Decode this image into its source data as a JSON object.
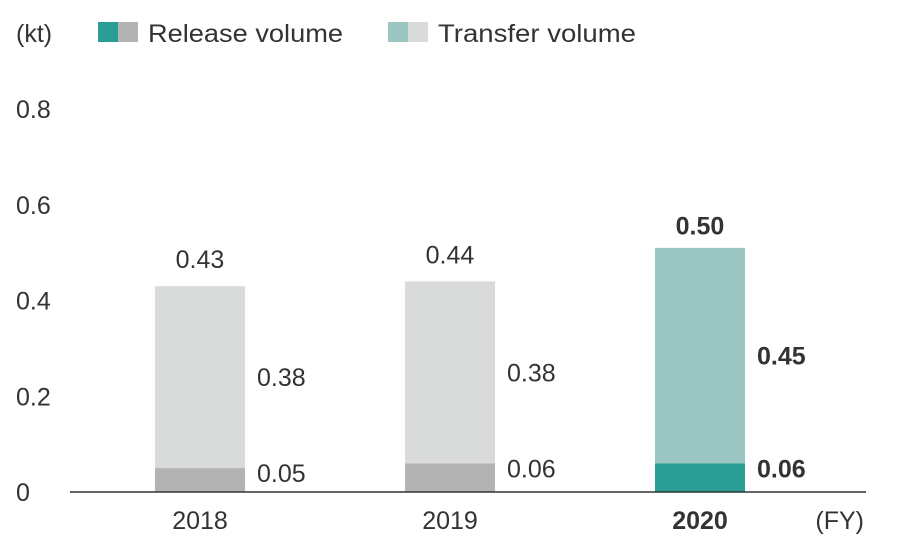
{
  "chart_data": {
    "type": "bar",
    "stacked": true,
    "unit_label": "(kt)",
    "x_unit_label": "(FY)",
    "categories": [
      "2018",
      "2019",
      "2020"
    ],
    "highlight_category": "2020",
    "ylim": [
      0,
      0.8
    ],
    "yticks": [
      "0",
      "0.2",
      "0.4",
      "0.6",
      "0.8"
    ],
    "ytick_values": [
      0,
      0.2,
      0.4,
      0.6,
      0.8
    ],
    "grid": false,
    "legend_position": "top",
    "series": [
      {
        "name": "Release volume",
        "values": [
          0.05,
          0.06,
          0.06
        ],
        "labels": [
          "0.05",
          "0.06",
          "0.06"
        ],
        "color": "#b3b3b3",
        "highlight_color": "#2a9d94"
      },
      {
        "name": "Transfer volume",
        "values": [
          0.38,
          0.38,
          0.45
        ],
        "labels": [
          "0.38",
          "0.38",
          "0.45"
        ],
        "color": "#d9dada",
        "highlight_color": "#9cc6c2"
      }
    ],
    "totals": [
      0.43,
      0.44,
      0.5
    ],
    "total_labels": [
      "0.43",
      "0.44",
      "0.50"
    ]
  }
}
